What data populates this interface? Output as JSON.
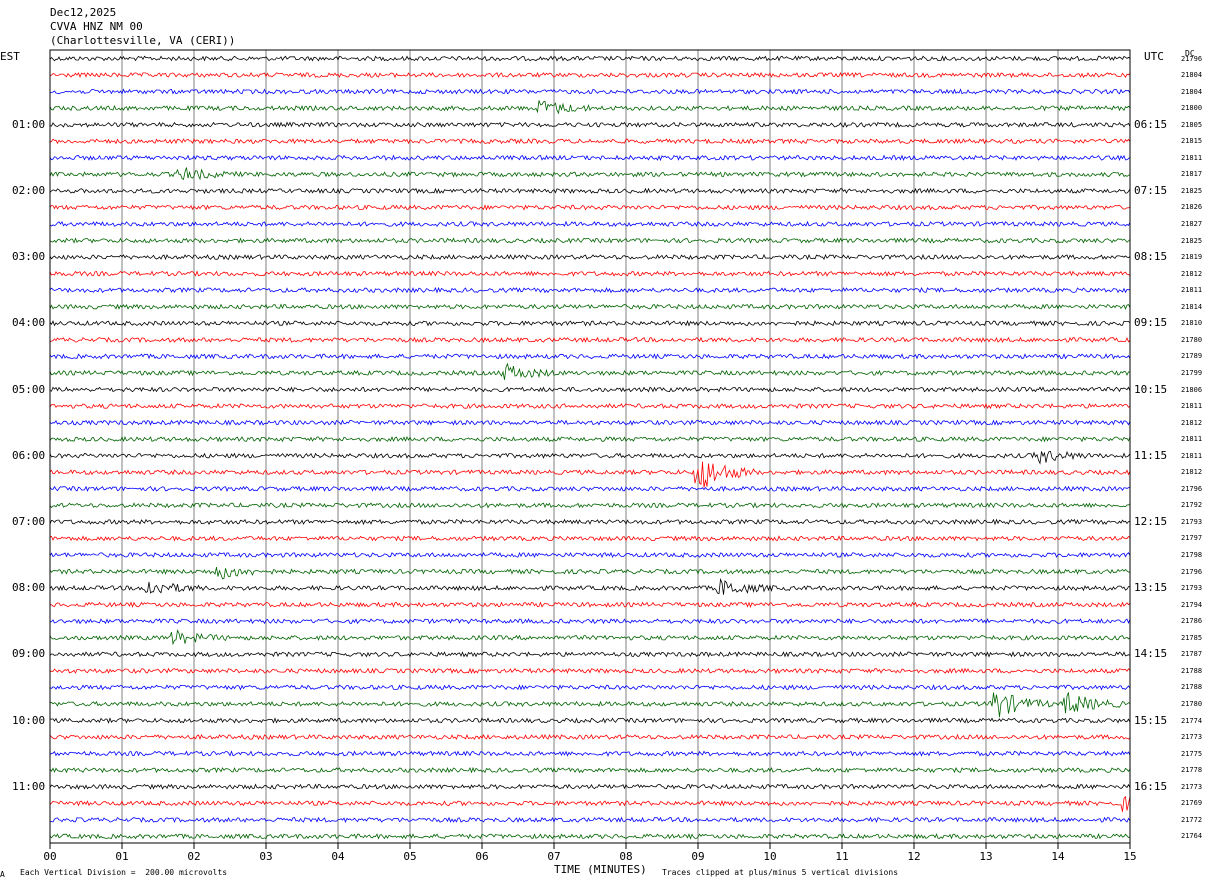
{
  "header": {
    "date": "Dec12,2025",
    "station": "CVVA HNZ NM 00",
    "location": "(Charlottesville, VA (CERI))"
  },
  "left_axis_label": "EST",
  "right_axis_label": "UTC",
  "dc_label": "DC",
  "footer": {
    "scale_note": "Each Vertical Division =  200.00 microvolts",
    "x_title": "TIME (MINUTES)",
    "clip_note": "Traces clipped at plus/minus 5 vertical divisions",
    "corner_mark": "A"
  },
  "colors": {
    "black": "#000000",
    "red": "#ff0000",
    "blue": "#0000ff",
    "green": "#006400",
    "grid": "#808080"
  },
  "chart_data": {
    "type": "line",
    "title": "CVVA HNZ NM 00",
    "xlabel": "TIME (MINUTES)",
    "xlim": [
      0,
      15
    ],
    "x_ticks": [
      "00",
      "01",
      "02",
      "03",
      "04",
      "05",
      "06",
      "07",
      "08",
      "09",
      "10",
      "11",
      "12",
      "13",
      "14",
      "15"
    ],
    "trace_color_cycle": [
      "black",
      "red",
      "blue",
      "green"
    ],
    "left_hour_labels": [
      "01:00",
      "02:00",
      "03:00",
      "04:00",
      "05:00",
      "06:00",
      "07:00",
      "08:00",
      "09:00",
      "10:00",
      "11:00"
    ],
    "right_hour_labels": [
      "06:15",
      "07:15",
      "08:15",
      "09:15",
      "10:15",
      "11:15",
      "12:15",
      "13:15",
      "14:15",
      "15:15",
      "16:15"
    ],
    "dc_values": [
      "21796",
      "21804",
      "21804",
      "21800",
      "21805",
      "21815",
      "21811",
      "21817",
      "21825",
      "21826",
      "21827",
      "21825",
      "21819",
      "21812",
      "21811",
      "21814",
      "21810",
      "21780",
      "21789",
      "21799",
      "21806",
      "21811",
      "21812",
      "21811",
      "21811",
      "21812",
      "21796",
      "21792",
      "21793",
      "21797",
      "21798",
      "21796",
      "21793",
      "21794",
      "21786",
      "21785",
      "21787",
      "21788",
      "21788",
      "21780",
      "21774",
      "21773",
      "21775",
      "21778",
      "21773",
      "21769",
      "21772",
      "21764"
    ],
    "events": [
      {
        "row": 3,
        "minute": 6.8,
        "amp": 1.3
      },
      {
        "row": 7,
        "minute": 1.8,
        "amp": 1.1
      },
      {
        "row": 19,
        "minute": 6.3,
        "amp": 1.4
      },
      {
        "row": 24,
        "minute": 13.7,
        "amp": 1.2
      },
      {
        "row": 25,
        "minute": 8.98,
        "amp": 3.5
      },
      {
        "row": 31,
        "minute": 2.3,
        "amp": 1.3
      },
      {
        "row": 32,
        "minute": 1.3,
        "amp": 1.5
      },
      {
        "row": 32,
        "minute": 9.3,
        "amp": 1.4
      },
      {
        "row": 35,
        "minute": 1.7,
        "amp": 1.1
      },
      {
        "row": 39,
        "minute": 13.1,
        "amp": 2.6
      },
      {
        "row": 39,
        "minute": 14.1,
        "amp": 2.0
      },
      {
        "row": 45,
        "minute": 14.9,
        "amp": 1.2
      }
    ]
  }
}
